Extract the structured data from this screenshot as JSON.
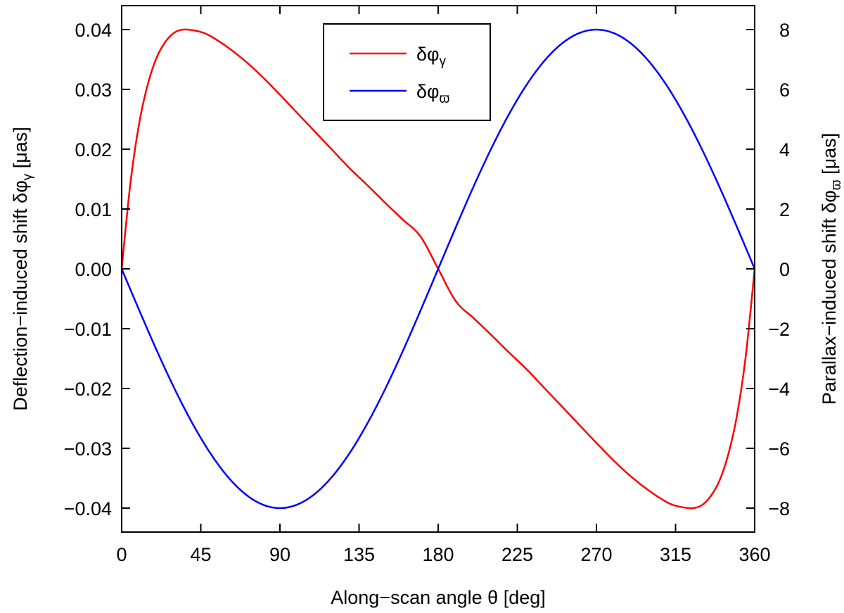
{
  "chart_data": {
    "type": "line",
    "title": "",
    "xlabel": "Along−scan angle θ [deg]",
    "ylabel_left": "Deflection−induced shift  δφγ  [μas]",
    "ylabel_left_parts": {
      "prefix": "Deflection−induced shift  δφ",
      "sub": "γ",
      "suffix": "  [μas]"
    },
    "ylabel_right": "Parallax−induced shift  δφϖ  [μas]",
    "ylabel_right_parts": {
      "prefix": "Parallax−induced shift  δφ",
      "sub": "ϖ",
      "suffix": "  [μas]"
    },
    "xlim": [
      0,
      360
    ],
    "ylim_left": [
      -0.044,
      0.044
    ],
    "ylim_right": [
      -8.8,
      8.8
    ],
    "xticks": [
      0,
      45,
      90,
      135,
      180,
      225,
      270,
      315,
      360
    ],
    "xtick_labels": [
      "0",
      "45",
      "90",
      "135",
      "180",
      "225",
      "270",
      "315",
      "360"
    ],
    "yticks_left": [
      -0.04,
      -0.03,
      -0.02,
      -0.01,
      0.0,
      0.01,
      0.02,
      0.03,
      0.04
    ],
    "ytick_labels_left": [
      "−0.04",
      "−0.03",
      "−0.02",
      "−0.01",
      "0.00",
      "0.01",
      "0.02",
      "0.03",
      "0.04"
    ],
    "yticks_right": [
      -8,
      -6,
      -4,
      -2,
      0,
      2,
      4,
      6,
      8
    ],
    "ytick_labels_right": [
      "−8",
      "−6",
      "−4",
      "−2",
      "0",
      "2",
      "4",
      "6",
      "8"
    ],
    "grid": false,
    "legend_position": "top-center",
    "series": [
      {
        "name": "δφγ",
        "name_prefix": "δφ",
        "name_sub": "γ",
        "axis": "left",
        "color": "#ff0000",
        "x": [
          0,
          5,
          10,
          15,
          20,
          25,
          30,
          35,
          40,
          45,
          50,
          60,
          70,
          80,
          90,
          100,
          110,
          120,
          130,
          140,
          150,
          160,
          170,
          180,
          190,
          200,
          210,
          220,
          230,
          240,
          250,
          260,
          270,
          280,
          290,
          300,
          310,
          315,
          320,
          325,
          330,
          335,
          340,
          345,
          350,
          355,
          360
        ],
        "values": [
          0.0,
          0.0144,
          0.0244,
          0.031,
          0.0354,
          0.038,
          0.0395,
          0.04,
          0.0399,
          0.0396,
          0.039,
          0.0371,
          0.0348,
          0.0321,
          0.0291,
          0.026,
          0.0229,
          0.0198,
          0.0167,
          0.0139,
          0.011,
          0.0082,
          0.0054,
          0.0,
          -0.0054,
          -0.0082,
          -0.011,
          -0.0139,
          -0.0167,
          -0.0198,
          -0.0229,
          -0.026,
          -0.0291,
          -0.0321,
          -0.0348,
          -0.0371,
          -0.039,
          -0.0396,
          -0.0399,
          -0.04,
          -0.0395,
          -0.038,
          -0.0354,
          -0.031,
          -0.0244,
          -0.0144,
          0.0
        ]
      },
      {
        "name": "δφϖ",
        "name_prefix": "δφ",
        "name_sub": "ϖ",
        "axis": "right",
        "color": "#0000ff",
        "x": [
          0,
          10,
          20,
          30,
          40,
          50,
          60,
          70,
          80,
          90,
          100,
          110,
          120,
          130,
          140,
          150,
          160,
          170,
          180,
          190,
          200,
          210,
          220,
          230,
          240,
          250,
          260,
          270,
          280,
          290,
          300,
          310,
          320,
          330,
          340,
          350,
          360
        ],
        "values": [
          0.0,
          -1.389,
          -2.736,
          -4.0,
          -5.142,
          -6.128,
          -6.928,
          -7.518,
          -7.878,
          -8.0,
          -7.878,
          -7.518,
          -6.928,
          -6.128,
          -5.142,
          -4.0,
          -2.736,
          -1.389,
          0.0,
          1.389,
          2.736,
          4.0,
          5.142,
          6.128,
          6.928,
          7.518,
          7.878,
          8.0,
          7.878,
          7.518,
          6.928,
          6.128,
          5.142,
          4.0,
          2.736,
          1.389,
          0.0
        ]
      }
    ]
  }
}
